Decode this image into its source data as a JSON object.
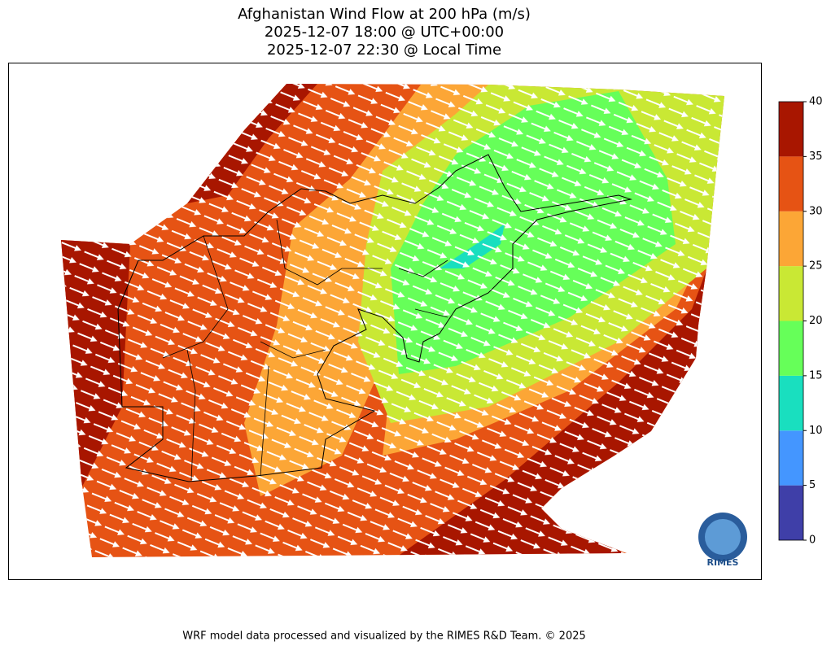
{
  "title": [
    "Afghanistan Wind Flow at 200 hPa (m/s)",
    "2025-12-07 18:00 @ UTC+00:00",
    "2025-12-07 22:30 @ Local Time"
  ],
  "colorbar": {
    "levels": [
      0,
      5,
      10,
      15,
      20,
      25,
      30,
      35,
      40
    ],
    "colors": [
      "#3f3fa8",
      "#4496ff",
      "#19dfbf",
      "#66ff59",
      "#c9e834",
      "#fca636",
      "#e65314",
      "#a81600"
    ]
  },
  "logo": "RIMES",
  "footer": "WRF model data processed and visualized by the RIMES R&D Team. © 2025"
}
